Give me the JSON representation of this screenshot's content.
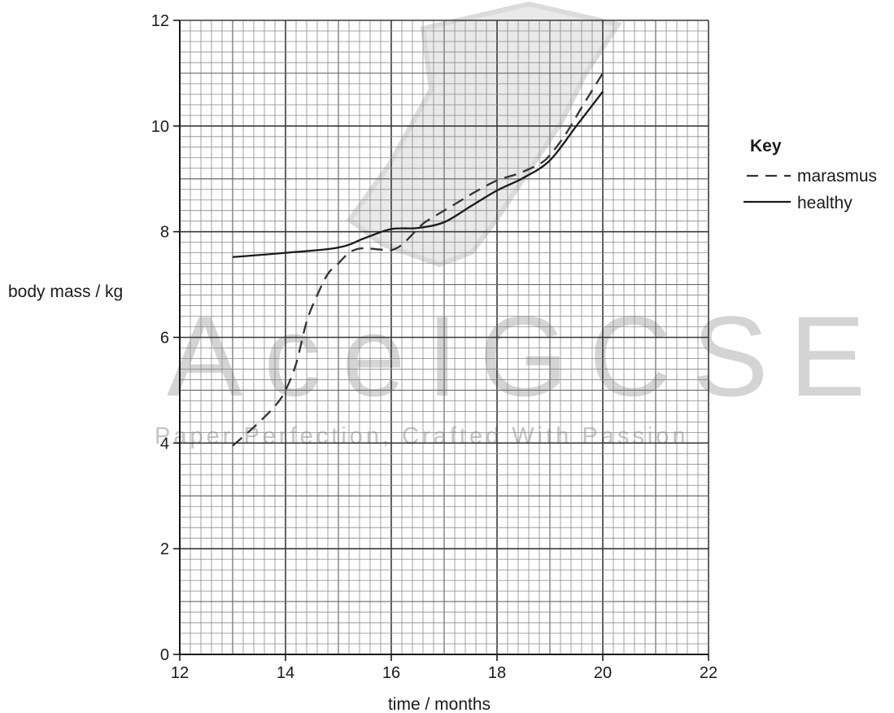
{
  "watermark": {
    "title": "AceIGCSE",
    "tagline": "Paper Perfection, Crafted With Passion"
  },
  "chart_data": {
    "type": "line",
    "xlabel": "time / months",
    "ylabel": "body mass / kg",
    "xlim": [
      12,
      22
    ],
    "ylim": [
      0,
      12
    ],
    "x_ticks": [
      12,
      14,
      16,
      18,
      20,
      22
    ],
    "y_ticks": [
      0,
      2,
      4,
      6,
      8,
      10,
      12
    ],
    "grid": {
      "major_step_x": 2,
      "minor_step_x": 0.2,
      "major_step_y": 2,
      "minor_step_y": 0.2,
      "mid_step_x": 1,
      "mid_step_y": 1
    },
    "legend": {
      "title": "Key",
      "position": "right"
    },
    "series": [
      {
        "name": "marasmus",
        "style": "dashed",
        "color": "#333333",
        "points": [
          [
            13.0,
            3.95
          ],
          [
            13.4,
            4.3
          ],
          [
            13.8,
            4.7
          ],
          [
            14.0,
            5.0
          ],
          [
            14.2,
            5.5
          ],
          [
            14.4,
            6.3
          ],
          [
            14.6,
            6.8
          ],
          [
            14.8,
            7.2
          ],
          [
            15.0,
            7.4
          ],
          [
            15.2,
            7.6
          ],
          [
            15.4,
            7.68
          ],
          [
            15.6,
            7.68
          ],
          [
            15.8,
            7.66
          ],
          [
            16.0,
            7.65
          ],
          [
            16.2,
            7.75
          ],
          [
            16.4,
            7.95
          ],
          [
            16.6,
            8.15
          ],
          [
            16.8,
            8.28
          ],
          [
            17.0,
            8.4
          ],
          [
            17.3,
            8.58
          ],
          [
            17.6,
            8.76
          ],
          [
            18.0,
            8.97
          ],
          [
            18.4,
            9.1
          ],
          [
            18.8,
            9.28
          ],
          [
            19.0,
            9.45
          ],
          [
            19.3,
            9.85
          ],
          [
            19.6,
            10.35
          ],
          [
            20.0,
            11.0
          ]
        ]
      },
      {
        "name": "healthy",
        "style": "solid",
        "color": "#1a1a1a",
        "points": [
          [
            13.0,
            7.52
          ],
          [
            14.0,
            7.6
          ],
          [
            15.0,
            7.7
          ],
          [
            15.5,
            7.88
          ],
          [
            16.0,
            8.05
          ],
          [
            16.5,
            8.07
          ],
          [
            17.0,
            8.18
          ],
          [
            17.5,
            8.48
          ],
          [
            18.0,
            8.78
          ],
          [
            18.5,
            9.02
          ],
          [
            19.0,
            9.35
          ],
          [
            19.5,
            10.0
          ],
          [
            20.0,
            10.65
          ]
        ]
      }
    ]
  }
}
